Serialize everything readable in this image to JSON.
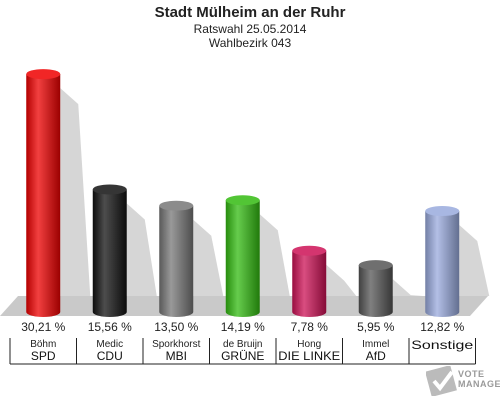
{
  "chart_data": {
    "type": "bar",
    "title": "Stadt Mülheim an der Ruhr",
    "subtitle": "Ratswahl 25.05.2014",
    "subtitle2": "Wahlbezirk 043",
    "ylim": [
      0,
      32
    ],
    "grid": false,
    "bars": [
      {
        "value": 30.21,
        "label": "30,21 %",
        "candidate": "Böhm",
        "party": "SPD",
        "color": "#ee0000"
      },
      {
        "value": 15.56,
        "label": "15,56 %",
        "candidate": "Medic",
        "party": "CDU",
        "color": "#111111"
      },
      {
        "value": 13.5,
        "label": "13,50 %",
        "candidate": "Sporkhorst",
        "party": "MBI",
        "color": "#777777"
      },
      {
        "value": 14.19,
        "label": "14,19 %",
        "candidate": "de Bruijn",
        "party": "GRÜNE",
        "color": "#33bb11"
      },
      {
        "value": 7.78,
        "label": "7,78 %",
        "candidate": "Hong",
        "party": "DIE LINKE",
        "color": "#cc1155"
      },
      {
        "value": 5.95,
        "label": "5,95 %",
        "candidate": "Immel",
        "party": "AfD",
        "color": "#555555"
      },
      {
        "value": 12.82,
        "label": "12,82 %",
        "candidate": "",
        "party": "Sonstige",
        "color": "#99aadd"
      }
    ]
  },
  "watermark": {
    "line1": "VOTE",
    "line2": "MANAGER"
  }
}
